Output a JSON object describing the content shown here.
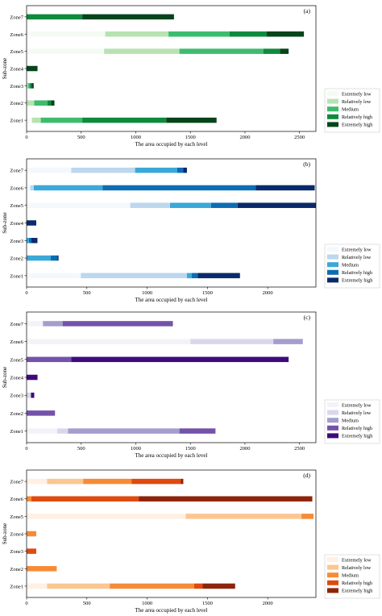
{
  "chart_data": [
    {
      "type": "bar",
      "stacked": true,
      "orientation": "horizontal",
      "panel_label": "(a)",
      "xlabel": "The area occupied by each level",
      "ylabel": "Sub-zone",
      "xlim": [
        0,
        2650
      ],
      "xticks": [
        0,
        500,
        1000,
        1500,
        2000,
        2500
      ],
      "categories": [
        "Zone1",
        "Zone2",
        "Zone3",
        "Zone4",
        "Zone5",
        "Zone6",
        "Zone7"
      ],
      "legend_position": "right",
      "colors": [
        "#f4fbf3",
        "#b7e3b2",
        "#3dbb6e",
        "#0e8a3d",
        "#06441b"
      ],
      "series": [
        {
          "name": "Extremely low",
          "values": [
            50,
            0,
            0,
            0,
            710,
            720,
            0
          ]
        },
        {
          "name": "Relatively low",
          "values": [
            80,
            70,
            15,
            0,
            690,
            580,
            0
          ]
        },
        {
          "name": "Medium",
          "values": [
            380,
            120,
            15,
            0,
            770,
            560,
            0
          ]
        },
        {
          "name": "Relatively high",
          "values": [
            770,
            35,
            15,
            0,
            150,
            340,
            510
          ]
        },
        {
          "name": "Extremely high",
          "values": [
            460,
            30,
            20,
            100,
            80,
            340,
            840
          ]
        }
      ]
    },
    {
      "type": "bar",
      "stacked": true,
      "orientation": "horizontal",
      "panel_label": "(b)",
      "xlabel": "The area occupied by each level",
      "ylabel": "Sub-zone",
      "xlim": [
        0,
        2400
      ],
      "xticks": [
        0,
        500,
        1000,
        1500,
        2000
      ],
      "categories": [
        "Zone1",
        "Zone2",
        "Zone3",
        "Zone4",
        "Zone5",
        "Zone6",
        "Zone7"
      ],
      "legend_position": "right",
      "colors": [
        "#f3f8fd",
        "#bcd7ee",
        "#3aa8d8",
        "#0c6db3",
        "#0a2a6b"
      ],
      "series": [
        {
          "name": "Extremely low",
          "values": [
            450,
            0,
            0,
            0,
            860,
            30,
            370
          ]
        },
        {
          "name": "Relatively low",
          "values": [
            880,
            0,
            0,
            0,
            330,
            30,
            530
          ]
        },
        {
          "name": "Medium",
          "values": [
            40,
            200,
            20,
            0,
            340,
            570,
            350
          ]
        },
        {
          "name": "Relatively high",
          "values": [
            50,
            55,
            20,
            0,
            220,
            1270,
            50
          ]
        },
        {
          "name": "Extremely high",
          "values": [
            350,
            10,
            50,
            80,
            650,
            490,
            30
          ]
        }
      ]
    },
    {
      "type": "bar",
      "stacked": true,
      "orientation": "horizontal",
      "panel_label": "(c)",
      "xlabel": "The area occupied by each level",
      "ylabel": "Sub-zone",
      "xlim": [
        0,
        2650
      ],
      "xticks": [
        0,
        500,
        1000,
        1500,
        2000,
        2500
      ],
      "categories": [
        "Zone1",
        "Zone2",
        "Zone3",
        "Zone4",
        "Zone5",
        "Zone6",
        "Zone7"
      ],
      "legend_position": "right",
      "colors": [
        "#f4f2f9",
        "#d9d8eb",
        "#a39ecd",
        "#7452aa",
        "#3f0a7d"
      ],
      "series": [
        {
          "name": "Extremely low",
          "values": [
            280,
            0,
            0,
            0,
            0,
            1500,
            150
          ]
        },
        {
          "name": "Relatively low",
          "values": [
            100,
            0,
            40,
            0,
            0,
            760,
            0
          ]
        },
        {
          "name": "Medium",
          "values": [
            1020,
            0,
            0,
            0,
            0,
            270,
            180
          ]
        },
        {
          "name": "Relatively high",
          "values": [
            330,
            260,
            0,
            0,
            410,
            0,
            1010
          ]
        },
        {
          "name": "Extremely high",
          "values": [
            0,
            0,
            30,
            100,
            1990,
            0,
            0
          ]
        }
      ]
    },
    {
      "type": "bar",
      "stacked": true,
      "orientation": "horizontal",
      "panel_label": "(d)",
      "xlabel": "The area occupied by each level",
      "ylabel": "Sub-zone",
      "xlim": [
        0,
        2400
      ],
      "xticks": [
        0,
        500,
        1000,
        1500,
        2000
      ],
      "categories": [
        "Zone1",
        "Zone2",
        "Zone3",
        "Zone4",
        "Zone5",
        "Zone6",
        "Zone7"
      ],
      "legend_position": "right",
      "colors": [
        "#fff0e3",
        "#fcc690",
        "#f58b38",
        "#df4a0e",
        "#8e250a"
      ],
      "series": [
        {
          "name": "Extremely low",
          "values": [
            170,
            0,
            0,
            0,
            1320,
            0,
            170
          ]
        },
        {
          "name": "Relatively low",
          "values": [
            520,
            0,
            0,
            0,
            960,
            0,
            300
          ]
        },
        {
          "name": "Medium",
          "values": [
            700,
            250,
            0,
            80,
            100,
            40,
            400
          ]
        },
        {
          "name": "Relatively high",
          "values": [
            70,
            0,
            80,
            0,
            0,
            890,
            410
          ]
        },
        {
          "name": "Extremely high",
          "values": [
            270,
            0,
            0,
            0,
            0,
            1440,
            20
          ]
        }
      ]
    }
  ]
}
